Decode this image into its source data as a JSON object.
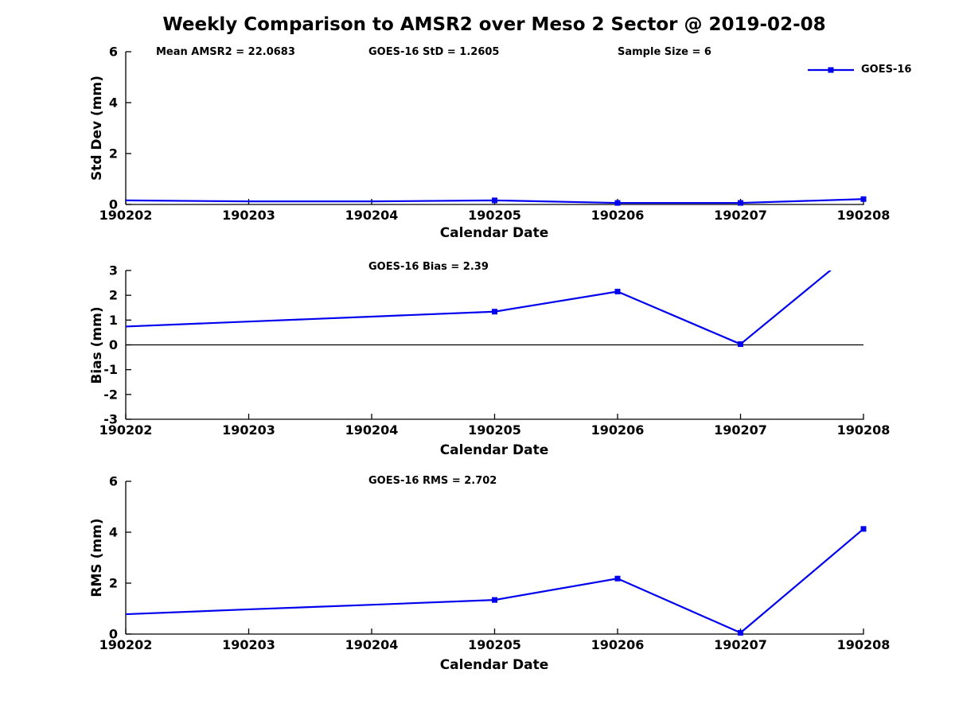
{
  "title": "Weekly Comparison to AMSR2 over Meso 2 Sector @ 2019-02-08",
  "legend": {
    "label": "GOES-16",
    "position": "top-right",
    "marker": "filled-square"
  },
  "colors": {
    "series": "#0000EE",
    "axis": "#000000",
    "background": "#FFFFFF"
  },
  "chart_data": [
    {
      "type": "line",
      "panel": "std-dev",
      "title": "",
      "annotations": [
        "Mean AMSR2 = 22.0683",
        "GOES-16 StD = 1.2605",
        "Sample Size = 6"
      ],
      "x": [
        "190202",
        "190203",
        "190204",
        "190205",
        "190206",
        "190207",
        "190208"
      ],
      "series": [
        {
          "name": "GOES-16",
          "values": [
            0.16,
            0.12,
            0.12,
            0.16,
            0.06,
            0.06,
            0.21
          ],
          "marker_indices": [
            3,
            4,
            5,
            6
          ]
        }
      ],
      "xlabel": "Calendar Date",
      "ylabel": "Std Dev (mm)",
      "ylim": [
        0,
        6
      ],
      "yticks": [
        0,
        2,
        4,
        6
      ],
      "grid": false,
      "clip_to_axes": false
    },
    {
      "type": "line",
      "panel": "bias",
      "title": "",
      "annotations": [
        "GOES-16 Bias  = 2.39"
      ],
      "x": [
        "190202",
        "190203",
        "190204",
        "190205",
        "190206",
        "190207",
        "190208"
      ],
      "series": [
        {
          "name": "GOES-16",
          "values": [
            0.74,
            0.94,
            1.14,
            1.34,
            2.15,
            0.03,
            4.1
          ],
          "marker_indices": [
            3,
            4,
            5,
            6
          ]
        }
      ],
      "xlabel": "Calendar Date",
      "ylabel": "Bias (mm)",
      "ylim": [
        -3,
        3
      ],
      "yticks": [
        -3,
        -2,
        -1,
        0,
        1,
        2,
        3
      ],
      "grid": false,
      "clip_to_axes": true,
      "note": "line clipped at ymax=3 before 190208"
    },
    {
      "type": "line",
      "panel": "rms",
      "title": "",
      "annotations": [
        "GOES-16 RMS = 2.702"
      ],
      "x": [
        "190202",
        "190203",
        "190204",
        "190205",
        "190206",
        "190207",
        "190208"
      ],
      "series": [
        {
          "name": "GOES-16",
          "values": [
            0.78,
            0.97,
            1.15,
            1.34,
            2.18,
            0.05,
            4.13
          ],
          "marker_indices": [
            3,
            4,
            5,
            6
          ]
        }
      ],
      "xlabel": "Calendar Date",
      "ylabel": "RMS (mm)",
      "ylim": [
        0,
        6
      ],
      "yticks": [
        0,
        2,
        4,
        6
      ],
      "grid": false,
      "clip_to_axes": false
    }
  ]
}
